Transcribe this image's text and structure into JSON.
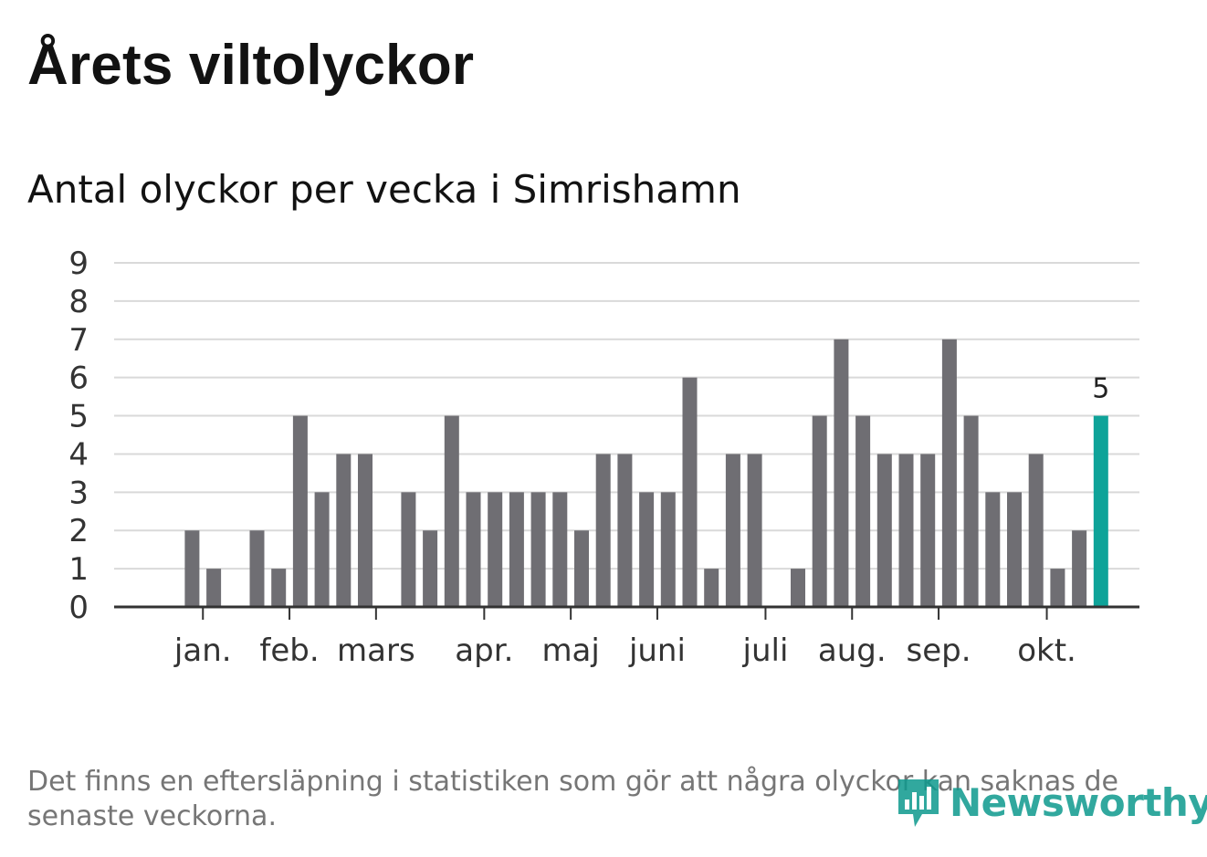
{
  "title": "Årets viltolyckor",
  "subtitle": "Antal olyckor per vecka i Simrishamn",
  "footnote": "Det finns en eftersläpning i statistiken som gör att några olyckor kan saknas de senaste veckorna.",
  "logo": {
    "text": "Newsworthy",
    "icon": "bar-chart-speech-icon"
  },
  "colors": {
    "bar": "#6f6e73",
    "highlight": "#0ea399",
    "grid": "#d9d9d9",
    "axis": "#333333",
    "brand": "#0e9a8e"
  },
  "chart_data": {
    "type": "bar",
    "title": "Antal olyckor per vecka i Simrishamn",
    "xlabel": "",
    "ylabel": "",
    "ylim": [
      0,
      9
    ],
    "yticks": [
      0,
      1,
      2,
      3,
      4,
      5,
      6,
      7,
      8,
      9
    ],
    "grid": true,
    "legend": "none",
    "x_weeks": [
      1,
      2,
      3,
      4,
      5,
      6,
      7,
      8,
      9,
      10,
      11,
      12,
      13,
      14,
      15,
      16,
      17,
      18,
      19,
      20,
      21,
      22,
      23,
      24,
      25,
      26,
      27,
      28,
      29,
      30,
      31,
      32,
      33,
      34,
      35,
      36,
      37,
      38,
      39,
      40,
      41,
      42,
      43,
      44,
      45,
      46
    ],
    "values": [
      0,
      0,
      2,
      1,
      0,
      2,
      1,
      5,
      3,
      4,
      4,
      0,
      3,
      2,
      5,
      3,
      3,
      3,
      3,
      3,
      2,
      4,
      4,
      3,
      3,
      6,
      1,
      4,
      4,
      0,
      1,
      5,
      7,
      5,
      4,
      4,
      4,
      7,
      5,
      3,
      3,
      4,
      1,
      2,
      5,
      0
    ],
    "highlight_index": 44,
    "highlight_label": "5",
    "month_labels": [
      {
        "label": "jan.",
        "week": 3.5
      },
      {
        "label": "feb.",
        "week": 7.5
      },
      {
        "label": "mars",
        "week": 11.5
      },
      {
        "label": "apr.",
        "week": 16.5
      },
      {
        "label": "maj",
        "week": 20.5
      },
      {
        "label": "juni",
        "week": 24.5
      },
      {
        "label": "juli",
        "week": 29.5
      },
      {
        "label": "aug.",
        "week": 33.5
      },
      {
        "label": "sep.",
        "week": 37.5
      },
      {
        "label": "okt.",
        "week": 42.5
      }
    ]
  }
}
